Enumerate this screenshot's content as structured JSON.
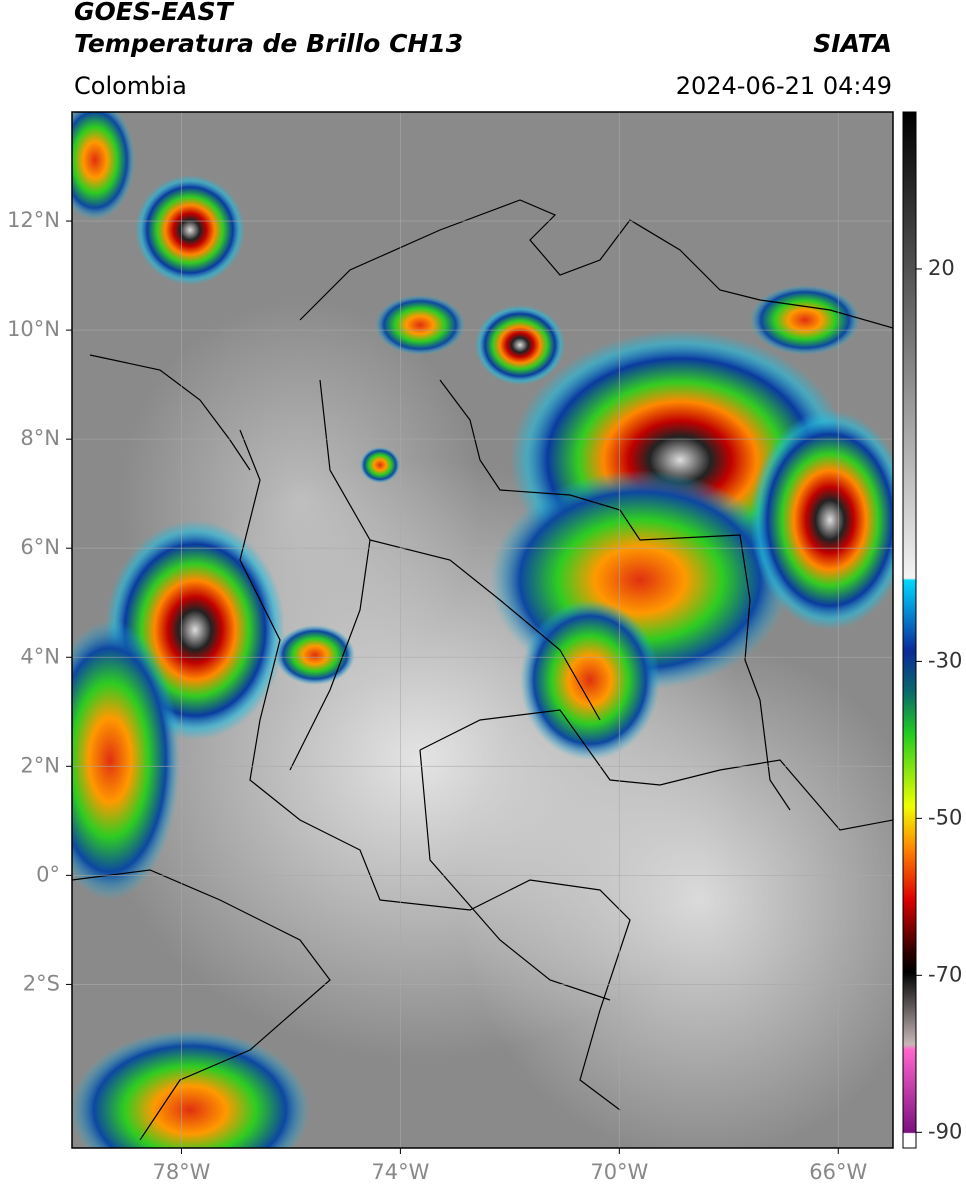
{
  "header": {
    "title": "GOES-EAST",
    "subtitle": "Temperatura de Brillo CH13",
    "source": "SIATA",
    "region": "Colombia",
    "datetime": "2024-06-21 04:49"
  },
  "map": {
    "xlim": [
      -80,
      -65
    ],
    "xticks": [
      {
        "value": -78,
        "label": "78°W"
      },
      {
        "value": -74,
        "label": "74°W"
      },
      {
        "value": -70,
        "label": "70°W"
      },
      {
        "value": -66,
        "label": "66°W"
      }
    ],
    "ylim": [
      -5,
      14
    ],
    "yticks": [
      {
        "value": 12,
        "label": "12°N"
      },
      {
        "value": 10,
        "label": "10°N"
      },
      {
        "value": 8,
        "label": "8°N"
      },
      {
        "value": 6,
        "label": "6°N"
      },
      {
        "value": 4,
        "label": "4°N"
      },
      {
        "value": 2,
        "label": "2°N"
      },
      {
        "value": 0,
        "label": "0°"
      },
      {
        "value": -2,
        "label": "2°S"
      }
    ],
    "grid": true
  },
  "colorbar": {
    "lim": [
      -92,
      40
    ],
    "ticks": [
      20,
      -30,
      -50,
      -70,
      -90
    ]
  }
}
